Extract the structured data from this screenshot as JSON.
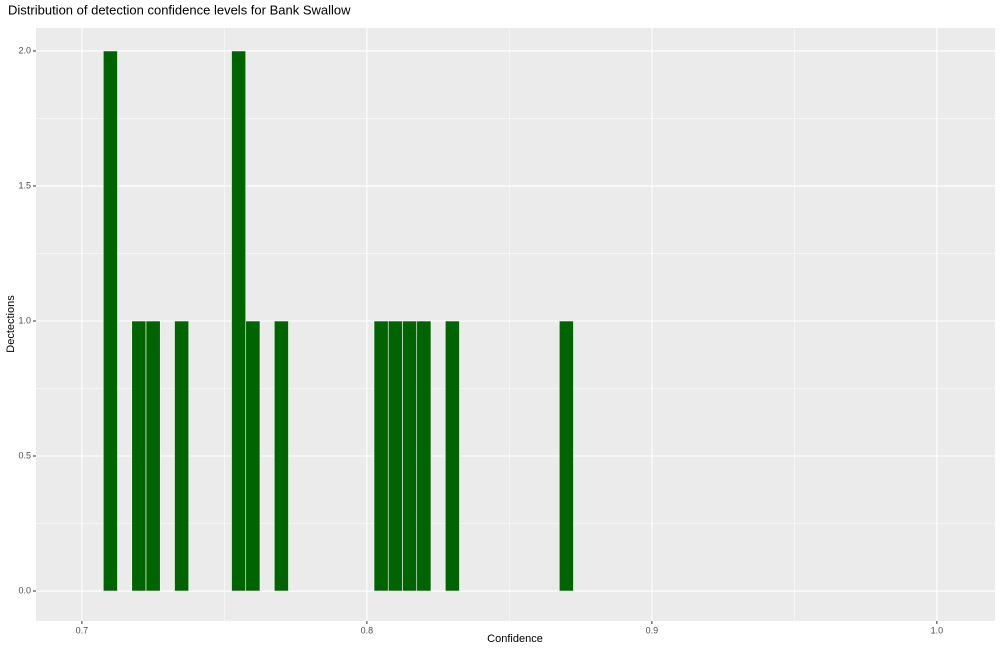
{
  "chart_data": {
    "type": "histogram",
    "title": "Distribution of detection confidence levels for Bank Swallow",
    "x_label": "Confidence",
    "y_label": "Dectections",
    "bins": [
      0.7075,
      0.7125,
      0.7175,
      0.7225,
      0.7275,
      0.7325,
      0.7375,
      0.7425,
      0.7475,
      0.7525,
      0.7575,
      0.7625,
      0.7675,
      0.7725,
      0.7775,
      0.7825,
      0.7875,
      0.7925,
      0.7975,
      0.8025,
      0.8075,
      0.8125,
      0.8175,
      0.8225,
      0.8275,
      0.8325,
      0.8375,
      0.8425,
      0.8475,
      0.8525,
      0.8575,
      0.8625,
      0.8675,
      0.8725
    ],
    "values": [
      2,
      0,
      1,
      1,
      0,
      1,
      0,
      0,
      0,
      2,
      1,
      0,
      1,
      0,
      0,
      0,
      0,
      0,
      0,
      1,
      1,
      1,
      1,
      0,
      1,
      0,
      0,
      0,
      0,
      0,
      0,
      0,
      1
    ],
    "color": "#006400",
    "xlim": [
      0.6839,
      1.0204
    ],
    "xticks": [
      0.7,
      0.8,
      0.9,
      {
        "value": 1,
        "label": "1.0"
      }
    ],
    "ylim": [
      -0.111,
      2.085
    ],
    "yticks": [
      {
        "value": 0,
        "label": "0.0"
      },
      0.5,
      {
        "value": 1,
        "label": "1.0"
      },
      1.5,
      {
        "value": 2,
        "label": "2.0"
      }
    ],
    "grid": true
  }
}
